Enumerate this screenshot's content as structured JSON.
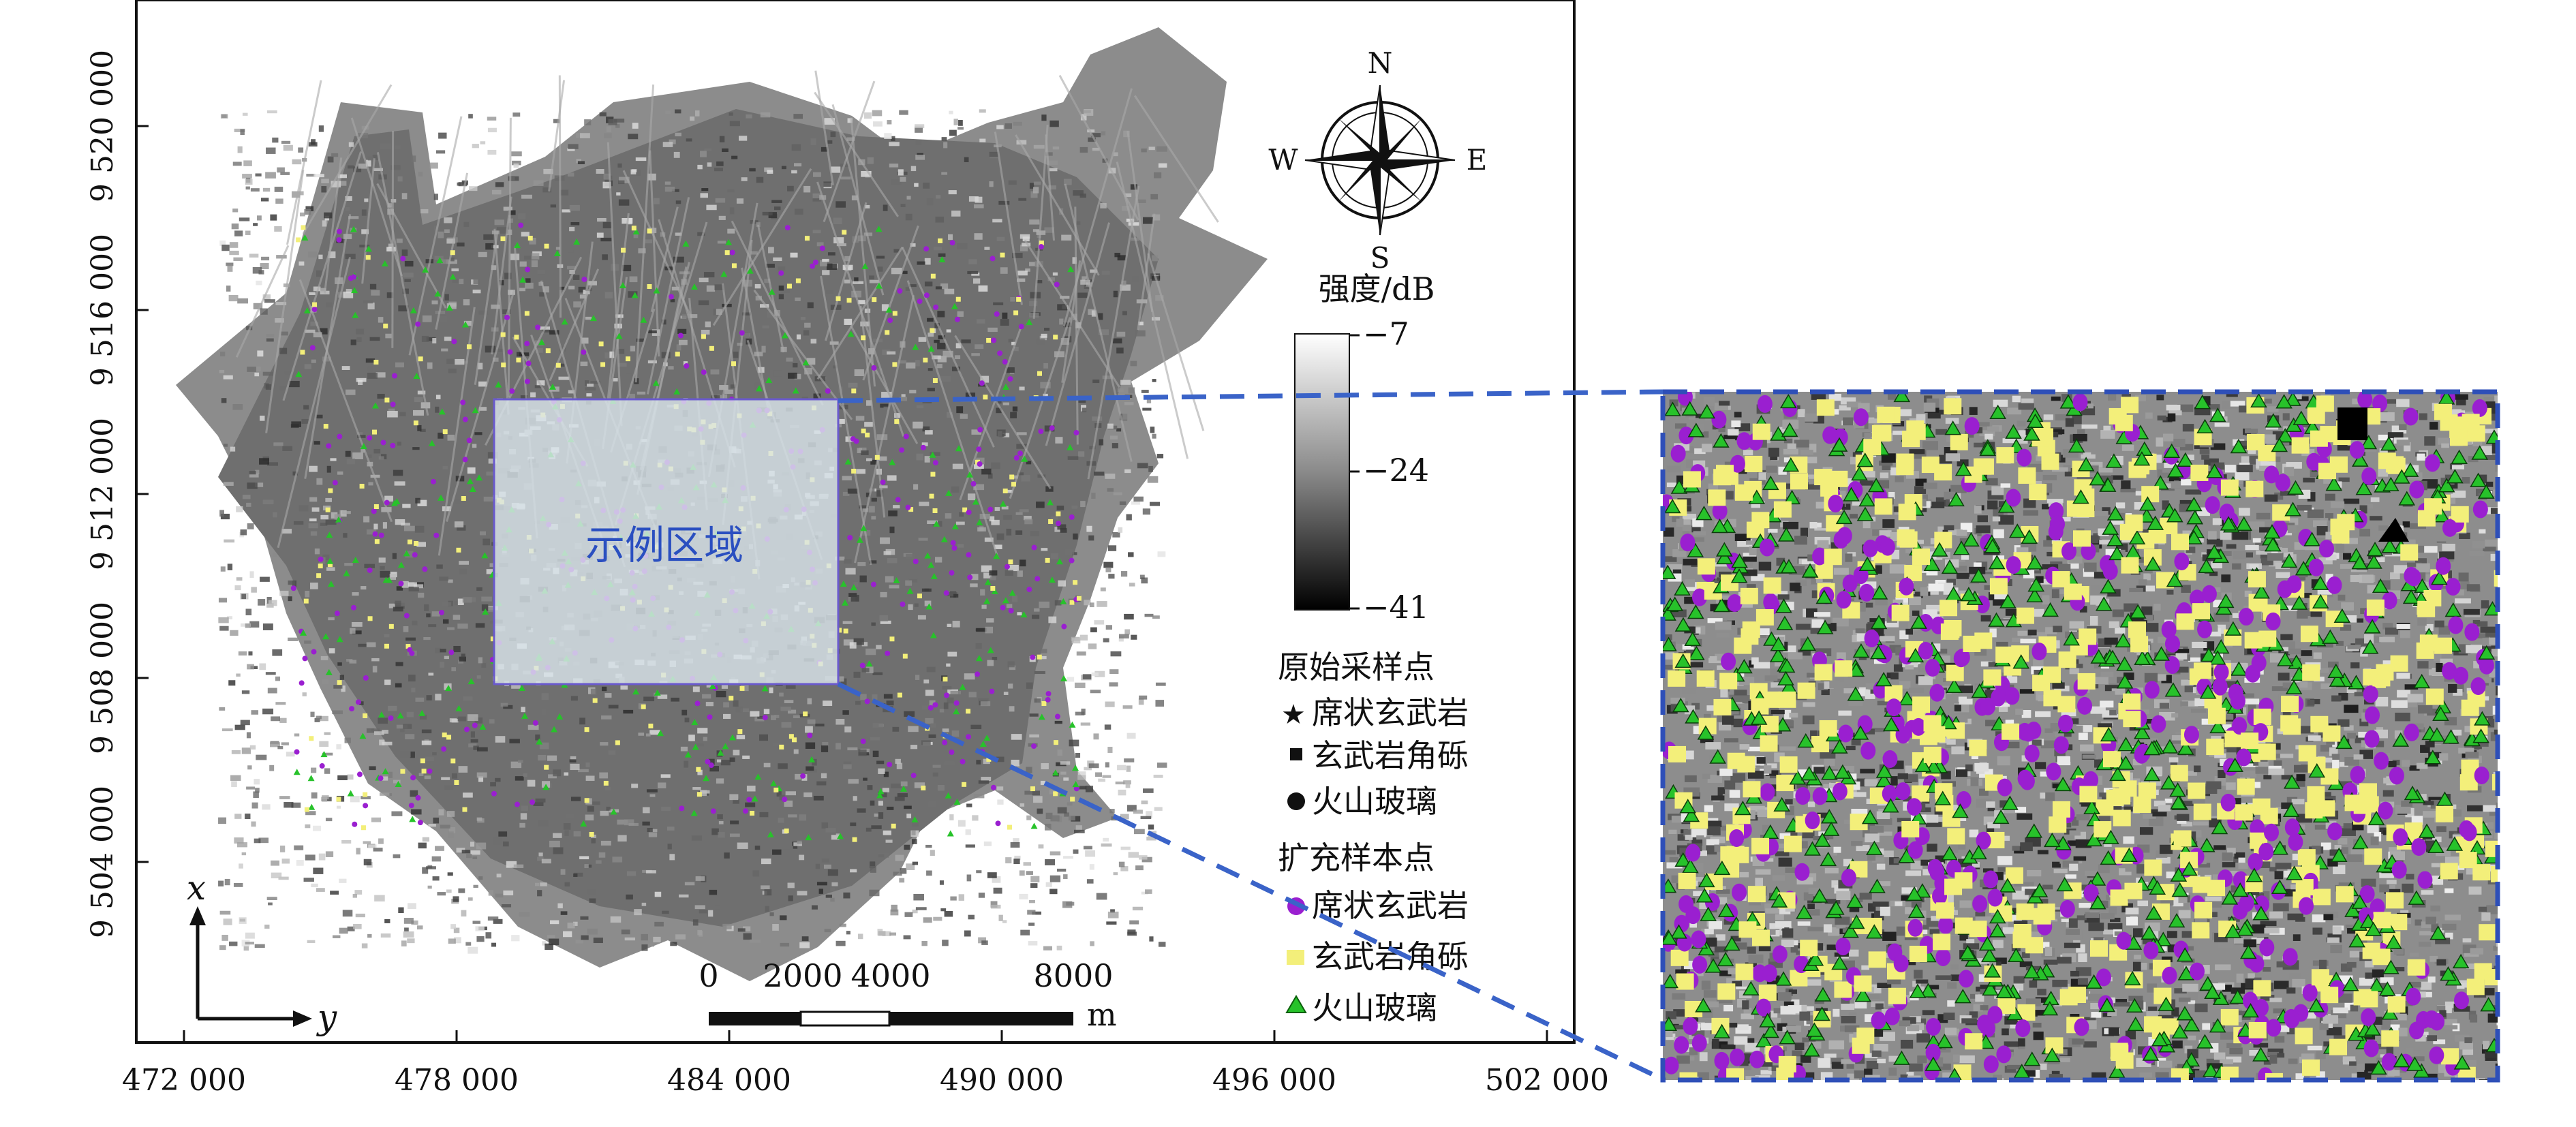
{
  "map": {
    "x_axis_ticks": [
      "472 000",
      "478 000",
      "484 000",
      "490 000",
      "496 000",
      "502 000"
    ],
    "y_axis_ticks": [
      "9 520 000",
      "9 516 000",
      "9 512 000",
      "9 508 000",
      "9 504 000"
    ],
    "axis_arrows": {
      "x_label": "x",
      "y_label": "y"
    },
    "compass": {
      "n": "N",
      "s": "S",
      "e": "E",
      "w": "W"
    },
    "example_region_label": "示例区域",
    "colorbar": {
      "title": "强度/dB",
      "max_label": "−7",
      "mid_label": "−24",
      "min_label": "−41"
    },
    "scale_bar": {
      "labels": [
        "0",
        "2000",
        "4000",
        "8000"
      ],
      "unit": "m"
    },
    "legend": {
      "original_title": "原始采样点",
      "original_items": [
        {
          "symbol": "star",
          "label": "席状玄武岩"
        },
        {
          "symbol": "square",
          "label": "玄武岩角砾"
        },
        {
          "symbol": "circle",
          "label": "火山玻璃"
        }
      ],
      "expanded_title": "扩充样本点",
      "expanded_items": [
        {
          "symbol": "purple-dot",
          "label": "席状玄武岩",
          "color": "#9a1fd0"
        },
        {
          "symbol": "yellow-square",
          "label": "玄武岩角砾",
          "color": "#f3ef7a"
        },
        {
          "symbol": "green-triangle",
          "label": "火山玻璃",
          "color": "#27c22a"
        }
      ]
    },
    "colors": {
      "purple": "#9a1fd0",
      "yellow": "#f3ef7a",
      "green": "#27c22a",
      "dashed_blue": "#3a63c8",
      "region_label": "#2a4fc0"
    }
  }
}
